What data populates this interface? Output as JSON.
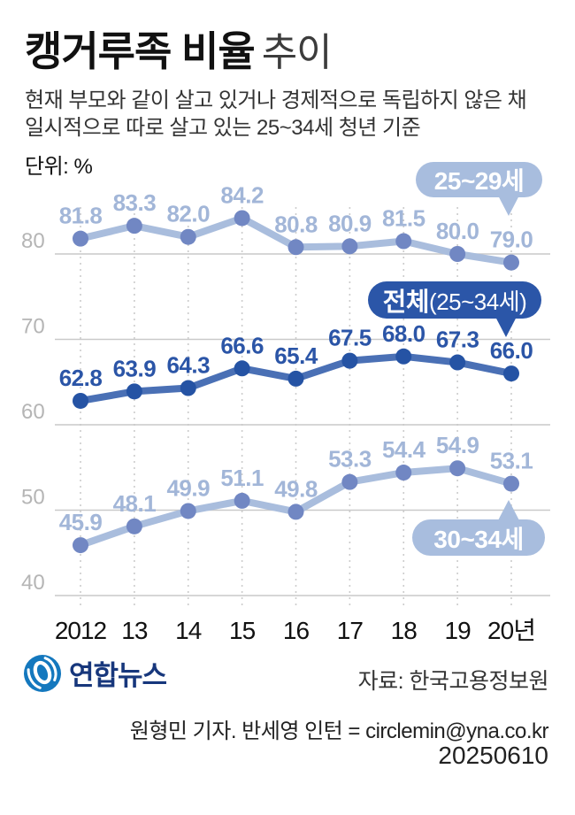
{
  "header": {
    "title_bold": "캥거루족 비율",
    "title_light": "추이",
    "subtitle_line1": "현재 부모와 같이 살고 있거나 경제적으로 독립하지 않은 채",
    "subtitle_line2": "일시적으로 따로 살고 있는 25~34세 청년 기준",
    "unit_label": "단위: %"
  },
  "chart_data": {
    "type": "line",
    "title": "캥거루족 비율 추이",
    "xlabel": "",
    "ylabel": "%",
    "categories": [
      "2012",
      "13",
      "14",
      "15",
      "16",
      "17",
      "18",
      "19",
      "20년"
    ],
    "series": [
      {
        "id": "age-25-29",
        "name": "25~29세",
        "values": [
          81.8,
          83.3,
          82.0,
          84.2,
          80.8,
          80.9,
          81.5,
          80.0,
          79.0
        ],
        "line_color": "#a9bddd",
        "dot_color": "#7187c3",
        "label_color": "#a2b6d8"
      },
      {
        "id": "total-25-34",
        "name": "전체(25~34세)",
        "values": [
          62.8,
          63.9,
          64.3,
          66.6,
          65.4,
          67.5,
          68.0,
          67.3,
          66.0
        ],
        "line_color": "#4a70b5",
        "dot_color": "#2553a4",
        "label_color": "#2b55a7"
      },
      {
        "id": "age-30-34",
        "name": "30~34세",
        "values": [
          45.9,
          48.1,
          49.9,
          51.1,
          49.8,
          53.3,
          54.4,
          54.9,
          53.1
        ],
        "line_color": "#a9bddd",
        "dot_color": "#7187c3",
        "label_color": "#a2b6d8"
      }
    ],
    "y_gridlines": [
      80,
      70,
      60,
      50,
      40
    ],
    "ylim": [
      38,
      86
    ],
    "grid": true,
    "legend_position": "inline-badges"
  },
  "badges": {
    "age_25_29": "25~29세",
    "total_bold": "전체",
    "total_rest": "(25~34세)",
    "age_30_34": "30~34세"
  },
  "colors": {
    "badge_light_bg": "#a8bdde",
    "badge_dark_bg": "#2b56a8",
    "gridline": "#c9c9c9",
    "dotted_gridline": "#cccccc",
    "y_axis_text": "#b5b5b5",
    "x_axis_text": "#111111",
    "logo_blue": "#1478be",
    "agency_navy": "#17377c"
  },
  "footer": {
    "agency_name": "연합뉴스",
    "source": "자료: 한국고용정보원",
    "credit": "원형민 기자. 반세영 인턴 = circlemin@yna.co.kr",
    "date": "20250610"
  }
}
